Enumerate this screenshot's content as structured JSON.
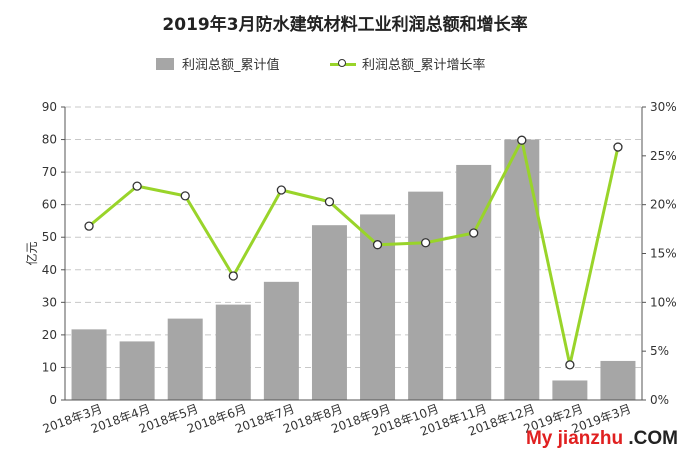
{
  "chart_data": {
    "type": "bar",
    "title": "2019年3月防水建筑材料工业利润总额和增长率",
    "categories": [
      "2018年3月",
      "2018年4月",
      "2018年5月",
      "2018年6月",
      "2018年7月",
      "2018年8月",
      "2018年9月",
      "2018年10月",
      "2018年11月",
      "2018年12月",
      "2019年2月",
      "2019年3月"
    ],
    "series": [
      {
        "name": "利润总额_累计值",
        "type": "bar",
        "axis": "left",
        "color": "#a6a6a6",
        "values": [
          21.7,
          18.0,
          25.0,
          29.3,
          36.3,
          53.7,
          57.0,
          64.0,
          72.2,
          80.0,
          6.0,
          12.0
        ]
      },
      {
        "name": "利润总额_累计增长率",
        "type": "line",
        "axis": "right",
        "color": "#99d42a",
        "values": [
          17.8,
          21.9,
          20.9,
          12.7,
          21.5,
          20.3,
          15.9,
          16.1,
          17.1,
          26.6,
          3.6,
          25.9
        ]
      }
    ],
    "ylabel": "亿元",
    "ylim": [
      0,
      90
    ],
    "y_ticks": [
      "0",
      "10",
      "20",
      "30",
      "40",
      "50",
      "60",
      "70",
      "80",
      "90"
    ],
    "y2lim": [
      0,
      30
    ],
    "y2_ticks": [
      "0%",
      "5%",
      "10%",
      "15%",
      "20%",
      "25%",
      "30%"
    ],
    "grid": true,
    "legend_position": "top"
  },
  "watermark": {
    "part1": "My jianzhu",
    "part2": ".COM"
  }
}
